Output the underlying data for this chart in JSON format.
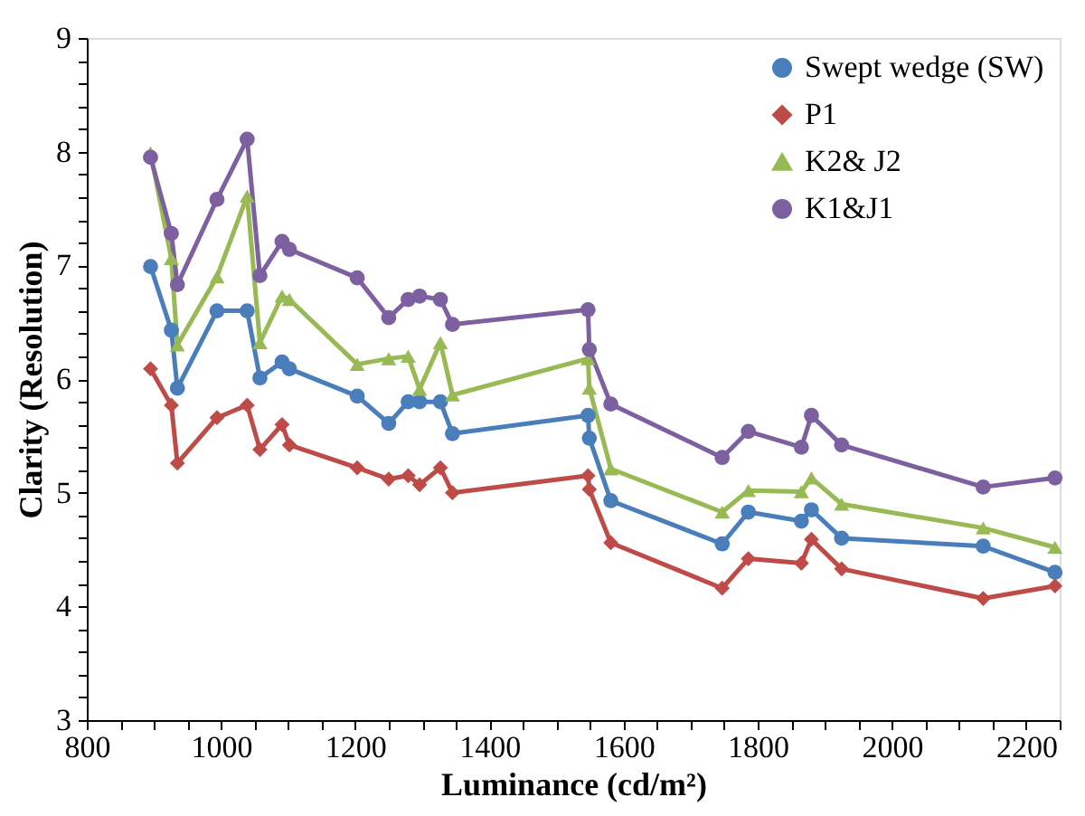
{
  "chart_data": {
    "type": "line",
    "xlabel": "Luminance (cd/m²)",
    "ylabel": "Clarity (Resolution)",
    "x": [
      895,
      926,
      935,
      994,
      1039,
      1058,
      1091,
      1102,
      1203,
      1250,
      1279,
      1296,
      1327,
      1345,
      1547,
      1549,
      1581,
      1747,
      1786,
      1865,
      1880,
      1925,
      2136,
      2243
    ],
    "series": [
      {
        "name": "Swept wedge (SW)",
        "color": "#4a7ebb",
        "marker": "circle",
        "values": [
          6.99,
          6.43,
          5.92,
          6.6,
          6.6,
          6.01,
          6.15,
          6.09,
          5.85,
          5.61,
          5.8,
          5.8,
          5.8,
          5.52,
          5.68,
          5.48,
          4.93,
          4.55,
          4.83,
          4.75,
          4.85,
          4.6,
          4.53,
          4.3
        ]
      },
      {
        "name": "P1",
        "color": "#be4b48",
        "marker": "diamond",
        "values": [
          6.09,
          5.77,
          5.26,
          5.66,
          5.77,
          5.38,
          5.6,
          5.42,
          5.22,
          5.12,
          5.15,
          5.07,
          5.22,
          5.0,
          5.15,
          5.03,
          4.56,
          4.16,
          4.42,
          4.38,
          4.59,
          4.33,
          4.07,
          4.18
        ]
      },
      {
        "name": "K2& J2",
        "color": "#98b954",
        "marker": "triangle",
        "values": [
          7.99,
          7.06,
          6.3,
          6.9,
          7.61,
          6.32,
          6.73,
          6.7,
          6.13,
          6.18,
          6.2,
          5.91,
          6.32,
          5.86,
          6.18,
          5.92,
          5.21,
          4.83,
          5.02,
          5.01,
          5.13,
          4.9,
          4.69,
          4.52
        ]
      },
      {
        "name": "K1&J1",
        "color": "#7d60a0",
        "marker": "circle",
        "values": [
          7.95,
          7.28,
          6.83,
          7.58,
          8.11,
          6.91,
          7.21,
          7.14,
          6.89,
          6.54,
          6.7,
          6.73,
          6.7,
          6.48,
          6.61,
          6.26,
          5.78,
          5.31,
          5.54,
          5.4,
          5.68,
          5.42,
          5.05,
          5.13
        ]
      }
    ],
    "xlim": [
      800,
      2250
    ],
    "xticks": [
      800,
      {
        "value": 850,
        "label": null
      },
      {
        "value": 900,
        "label": null
      },
      {
        "value": 950,
        "label": null
      },
      1000,
      {
        "value": 1050,
        "label": null
      },
      {
        "value": 1100,
        "label": null
      },
      {
        "value": 1150,
        "label": null
      },
      1200,
      {
        "value": 1250,
        "label": null
      },
      {
        "value": 1300,
        "label": null
      },
      {
        "value": 1350,
        "label": null
      },
      1400,
      {
        "value": 1450,
        "label": null
      },
      {
        "value": 1500,
        "label": null
      },
      {
        "value": 1550,
        "label": null
      },
      1600,
      {
        "value": 1650,
        "label": null
      },
      {
        "value": 1700,
        "label": null
      },
      {
        "value": 1750,
        "label": null
      },
      1800,
      {
        "value": 1850,
        "label": null
      },
      {
        "value": 1900,
        "label": null
      },
      {
        "value": 1950,
        "label": null
      },
      2000,
      {
        "value": 2050,
        "label": null
      },
      {
        "value": 2100,
        "label": null
      },
      {
        "value": 2150,
        "label": null
      },
      2200,
      {
        "value": 2250,
        "label": null
      }
    ],
    "ylim": [
      3,
      9
    ],
    "yticks": [
      3,
      {
        "value": 3.2,
        "label": null
      },
      {
        "value": 3.4,
        "label": null
      },
      {
        "value": 3.6,
        "label": null
      },
      {
        "value": 3.8,
        "label": null
      },
      4,
      {
        "value": 4.2,
        "label": null
      },
      {
        "value": 4.4,
        "label": null
      },
      {
        "value": 4.6,
        "label": null
      },
      {
        "value": 4.8,
        "label": null
      },
      5,
      {
        "value": 5.2,
        "label": null
      },
      {
        "value": 5.4,
        "label": null
      },
      {
        "value": 5.6,
        "label": null
      },
      {
        "value": 5.8,
        "label": null
      },
      6,
      {
        "value": 6.2,
        "label": null
      },
      {
        "value": 6.4,
        "label": null
      },
      {
        "value": 6.6,
        "label": null
      },
      {
        "value": 6.8,
        "label": null
      },
      7,
      {
        "value": 7.2,
        "label": null
      },
      {
        "value": 7.4,
        "label": null
      },
      {
        "value": 7.6,
        "label": null
      },
      {
        "value": 7.8,
        "label": null
      },
      8,
      {
        "value": 8.2,
        "label": null
      },
      {
        "value": 8.4,
        "label": null
      },
      {
        "value": 8.6,
        "label": null
      },
      {
        "value": 8.8,
        "label": null
      },
      9
    ],
    "grid": false,
    "legend": "top right",
    "line_style": "solid"
  }
}
